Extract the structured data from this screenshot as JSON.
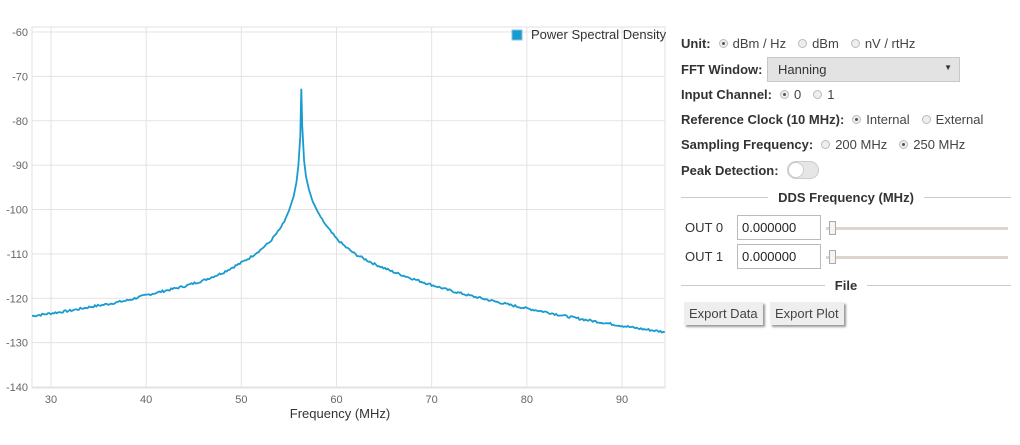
{
  "chart_data": {
    "type": "line",
    "title": "",
    "xlabel": "Frequency (MHz)",
    "ylabel": "",
    "xlim": [
      28.0,
      94.5
    ],
    "ylim": [
      -140,
      -60
    ],
    "xticks": [
      30,
      40,
      50,
      60,
      70,
      80,
      90
    ],
    "yticks": [
      -60,
      -70,
      -80,
      -90,
      -100,
      -110,
      -120,
      -130,
      -140
    ],
    "grid": true,
    "legend_position": "top-right",
    "series": [
      {
        "name": "Power Spectral Density",
        "color": "#1a9bd0",
        "x": [
          28.0,
          30,
          32,
          34,
          36,
          38,
          40,
          42,
          44,
          46,
          48,
          50,
          51,
          52,
          53,
          54,
          54.5,
          55,
          55.5,
          55.8,
          56.0,
          56.2,
          56.3,
          56.4,
          56.6,
          56.8,
          57.1,
          57.5,
          58,
          58.5,
          59,
          60,
          61,
          62,
          64,
          66,
          68,
          70,
          72,
          74,
          76,
          78,
          80,
          82,
          84,
          86,
          88,
          90,
          92,
          94.5
        ],
        "y": [
          -124.0,
          -123.4,
          -122.8,
          -122.0,
          -121.3,
          -120.5,
          -119.3,
          -118.3,
          -117.3,
          -116.0,
          -114.3,
          -112.0,
          -110.7,
          -109.1,
          -107.3,
          -104.6,
          -102.8,
          -100.3,
          -97.0,
          -93.8,
          -90.0,
          -83.5,
          -72.8,
          -81.0,
          -89.0,
          -92.6,
          -95.5,
          -98.2,
          -100.4,
          -102.3,
          -103.9,
          -106.6,
          -108.5,
          -110.1,
          -112.3,
          -114.1,
          -115.6,
          -117.0,
          -118.3,
          -119.4,
          -120.4,
          -121.4,
          -122.3,
          -123.1,
          -124.0,
          -124.8,
          -125.5,
          -126.2,
          -126.9,
          -127.6
        ]
      }
    ]
  },
  "legend": {
    "label": "Power Spectral Density",
    "color": "#1a9bd0"
  },
  "axis": {
    "x_title": "Frequency (MHz)",
    "x_ticks": [
      "30",
      "40",
      "50",
      "60",
      "70",
      "80",
      "90"
    ],
    "y_ticks": [
      "-60",
      "-70",
      "-80",
      "-90",
      "-100",
      "-110",
      "-120",
      "-130",
      "-140"
    ]
  },
  "controls": {
    "unit": {
      "label": "Unit:",
      "options": [
        "dBm / Hz",
        "dBm",
        "nV / rtHz"
      ],
      "selected": "dBm / Hz"
    },
    "fft_window": {
      "label": "FFT Window:",
      "value": "Hanning"
    },
    "input_channel": {
      "label": "Input Channel:",
      "options": [
        "0",
        "1"
      ],
      "selected": "0"
    },
    "reference_clock": {
      "label": "Reference Clock (10 MHz):",
      "options": [
        "Internal",
        "External"
      ],
      "selected": "Internal"
    },
    "sampling_frequency": {
      "label": "Sampling Frequency:",
      "options": [
        "200 MHz",
        "250 MHz"
      ],
      "selected": "250 MHz"
    },
    "peak_detection": {
      "label": "Peak Detection:",
      "enabled": false
    }
  },
  "dds": {
    "title": "DDS Frequency (MHz)",
    "outputs": [
      {
        "label": "OUT 0",
        "value": "0.000000"
      },
      {
        "label": "OUT 1",
        "value": "0.000000"
      }
    ]
  },
  "file": {
    "title": "File",
    "export_data": "Export Data",
    "export_plot": "Export Plot"
  }
}
